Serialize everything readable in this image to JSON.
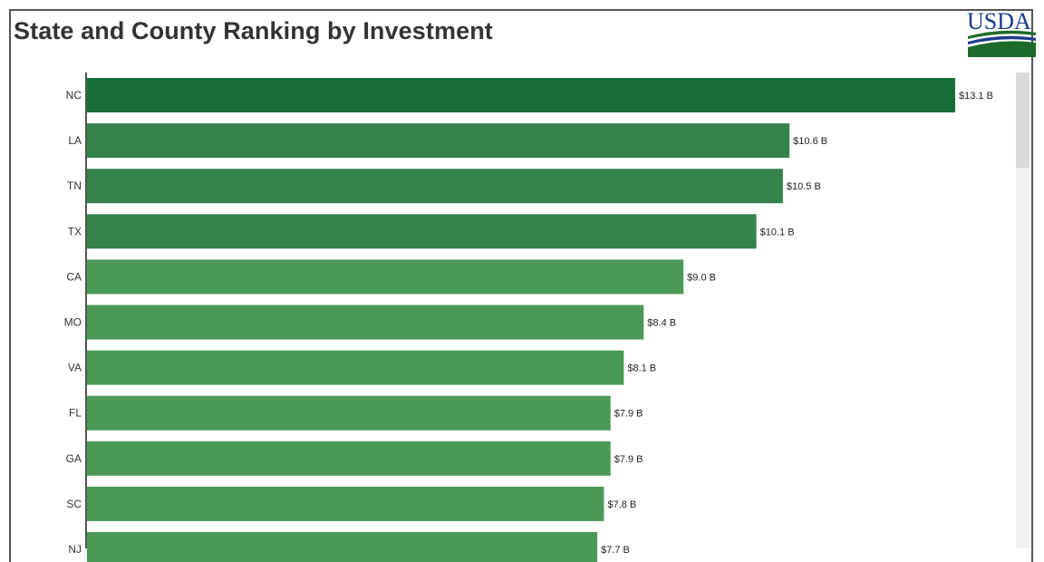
{
  "header": {
    "title": "State and County Ranking by Investment",
    "logo_text": "USDA"
  },
  "colors": {
    "bar_top": "#166f38",
    "bar_high": "#33834b",
    "bar_mid": "#4a9a55",
    "logo_blue": "#1d3c8d",
    "logo_green": "#1d6b2a"
  },
  "chart_data": {
    "type": "bar",
    "orientation": "horizontal",
    "title": "State and County Ranking by Investment",
    "categories": [
      "NC",
      "LA",
      "TN",
      "TX",
      "CA",
      "MO",
      "VA",
      "FL",
      "GA",
      "SC",
      "NJ"
    ],
    "values": [
      13.1,
      10.6,
      10.5,
      10.1,
      9.0,
      8.4,
      8.1,
      7.9,
      7.9,
      7.8,
      7.7
    ],
    "labels": [
      "$13.1 B",
      "$10.6 B",
      "$10.5 B",
      "$10.1 B",
      "$9.0 B",
      "$8.4 B",
      "$8.1 B",
      "$7.9 B",
      "$7.9 B",
      "$7.8 B",
      "$7.7 B"
    ],
    "xlabel": "",
    "ylabel": "",
    "xlim": [
      0,
      13.1
    ],
    "grid": false,
    "legend": "none"
  }
}
